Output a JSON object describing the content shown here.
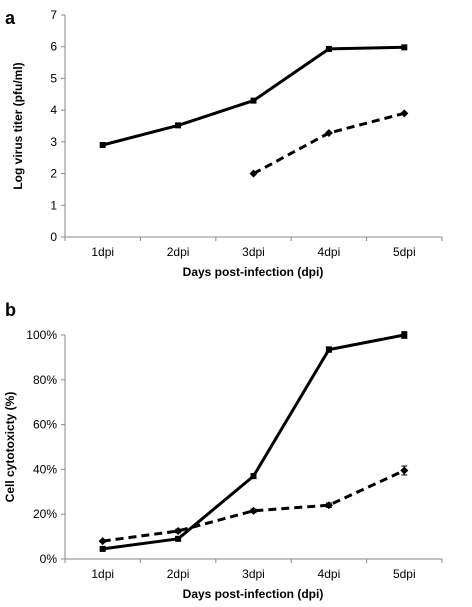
{
  "chart_data": [
    {
      "type": "line",
      "panel_label": "a",
      "categories": [
        "1dpi",
        "2dpi",
        "3dpi",
        "4dpi",
        "5dpi"
      ],
      "xlabel": "Days post-infection (dpi)",
      "ylabel": "Log virus titer (pfu/ml)",
      "ylim": [
        0,
        7
      ],
      "yticks": [
        "0",
        "1",
        "2",
        "3",
        "4",
        "5",
        "6",
        "7"
      ],
      "grid": false,
      "series": [
        {
          "style": "solid",
          "marker": "square",
          "values": [
            2.9,
            3.52,
            4.3,
            5.93,
            5.98
          ]
        },
        {
          "style": "dashed",
          "marker": "diamond",
          "values": [
            null,
            null,
            2.0,
            3.28,
            3.9
          ]
        }
      ]
    },
    {
      "type": "line",
      "panel_label": "b",
      "categories": [
        "1dpi",
        "2dpi",
        "3dpi",
        "4dpi",
        "5dpi"
      ],
      "xlabel": "Days post-infection (dpi)",
      "ylabel": "Cell cytotoxicty (%)",
      "ylim": [
        0,
        100
      ],
      "yticks": [
        "0%",
        "20%",
        "40%",
        "60%",
        "80%",
        "100%"
      ],
      "grid": false,
      "series": [
        {
          "style": "solid",
          "marker": "square",
          "values": [
            4.5,
            9,
            37,
            93.5,
            100
          ],
          "errors": [
            0.5,
            0.8,
            1.0,
            1.2,
            1.5
          ]
        },
        {
          "style": "dashed",
          "marker": "diamond",
          "values": [
            8,
            12.5,
            21.5,
            24,
            39.5
          ],
          "errors": [
            0.5,
            0.8,
            0.8,
            1.0,
            2.0
          ]
        }
      ]
    }
  ]
}
